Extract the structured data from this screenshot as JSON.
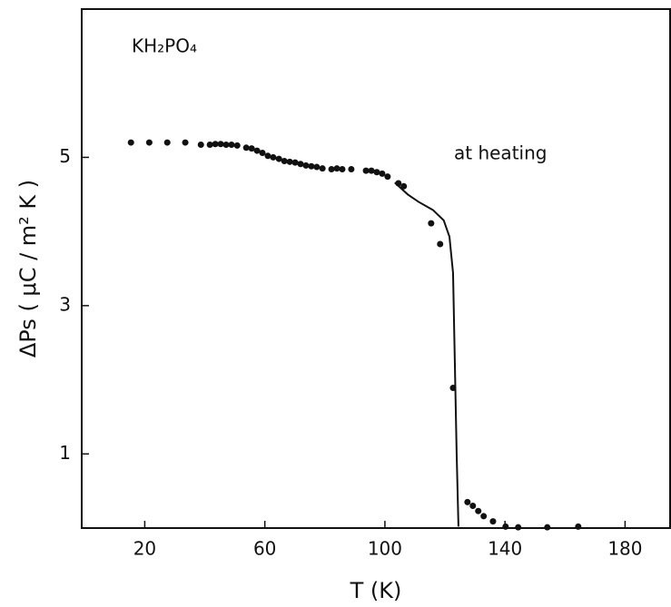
{
  "chart_data": {
    "type": "scatter",
    "x_label": "T (K)",
    "y_label": "ΔPs ( μC / m² K )",
    "annotations": [
      "KH₂PO₄",
      "at heating"
    ],
    "xlim": [
      -1,
      195
    ],
    "ylim": [
      0,
      7
    ],
    "xticks": [
      20,
      60,
      100,
      140,
      180
    ],
    "yticks": [
      1,
      3,
      5
    ],
    "series": [
      {
        "color": "#111111",
        "x": [
          15.4,
          21.5,
          27.5,
          33.5,
          38.7,
          41.7,
          43.5,
          45.3,
          47.1,
          48.9,
          50.8,
          53.8,
          55.6,
          57.4,
          59.2,
          61.0,
          62.8,
          64.7,
          66.5,
          68.3,
          70.1,
          71.9,
          73.7,
          75.5,
          77.3,
          79.2,
          82.2,
          84.0,
          85.8,
          88.8,
          93.7,
          95.5,
          97.3,
          99.1,
          100.9,
          104.5,
          106.3,
          115.4,
          118.4,
          122.7,
          127.5,
          129.3,
          131.1,
          132.9,
          136.0,
          140.2,
          144.4,
          154.1,
          164.4
        ],
        "values": [
          5.2,
          5.2,
          5.2,
          5.2,
          5.17,
          5.17,
          5.18,
          5.18,
          5.17,
          5.17,
          5.16,
          5.13,
          5.12,
          5.09,
          5.06,
          5.02,
          5.0,
          4.98,
          4.95,
          4.94,
          4.93,
          4.91,
          4.89,
          4.88,
          4.87,
          4.85,
          4.84,
          4.85,
          4.84,
          4.84,
          4.82,
          4.82,
          4.8,
          4.78,
          4.74,
          4.65,
          4.61,
          4.11,
          3.83,
          1.89,
          0.35,
          0.3,
          0.23,
          0.16,
          0.09,
          0.02,
          0.01,
          0.01,
          0.02
        ]
      },
      {
        "type": "line",
        "color": "#111111",
        "x": [
          103.3,
          107.6,
          111.2,
          116.0,
          119.6,
          121.5,
          122.7,
          123.3,
          123.9,
          124.5
        ],
        "values": [
          4.66,
          4.5,
          4.4,
          4.29,
          4.15,
          3.93,
          3.44,
          2.22,
          1.0,
          0.02
        ]
      }
    ]
  }
}
